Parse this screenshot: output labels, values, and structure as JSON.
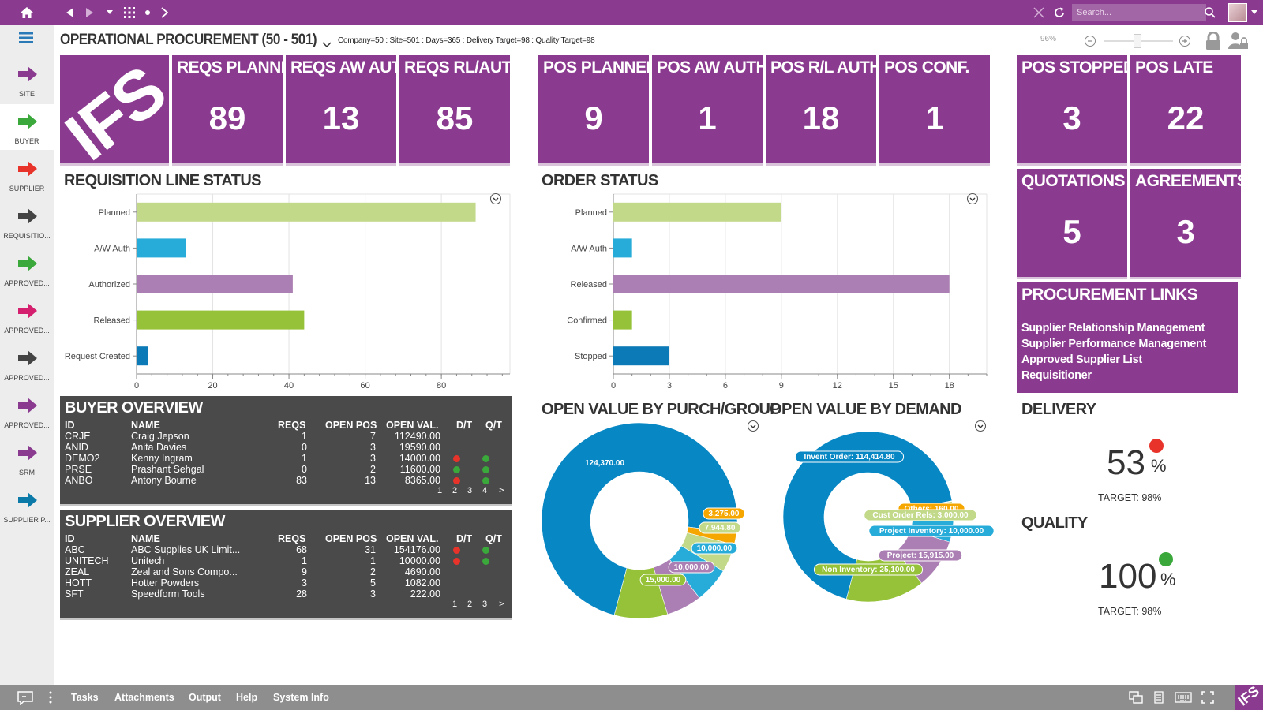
{
  "topbar": {
    "search_placeholder": "Search...",
    "icons": [
      "home-icon",
      "back-icon",
      "forward-icon",
      "dropdown-icon",
      "apps-grid-icon",
      "dot-icon",
      "navigate-icon",
      "close-icon",
      "refresh-icon",
      "search-icon"
    ]
  },
  "page": {
    "title": "OPERATIONAL PROCUREMENT (50 - 501)",
    "params": "Company=50 : Site=501 : Days=365 : Delivery Target=98 : Quality Target=98",
    "zoom": "96%"
  },
  "sidebar": {
    "items": [
      {
        "label": "SITE",
        "color": "#8a3a8f"
      },
      {
        "label": "BUYER",
        "color": "#3aa83a"
      },
      {
        "label": "SUPPLIER",
        "color": "#e8332a"
      },
      {
        "label": "REQUISITIO...",
        "color": "#444444"
      },
      {
        "label": "APPROVED...",
        "color": "#3aa83a"
      },
      {
        "label": "APPROVED...",
        "color": "#d4206e"
      },
      {
        "label": "APPROVED...",
        "color": "#444444"
      },
      {
        "label": "APPROVED...",
        "color": "#8a3a8f"
      },
      {
        "label": "SRM",
        "color": "#8a3a8f"
      },
      {
        "label": "SUPPLIER P...",
        "color": "#0b7aa8"
      }
    ]
  },
  "tiles": [
    {
      "label": "REQS PLANNED",
      "value": "89"
    },
    {
      "label": "REQS AW AUTH",
      "value": "13"
    },
    {
      "label": "REQS RL/AUTH",
      "value": "85"
    },
    {
      "label": "POS PLANNED",
      "value": "9"
    },
    {
      "label": "POS AW AUTH",
      "value": "1"
    },
    {
      "label": "POS R/L AUTH",
      "value": "18"
    },
    {
      "label": "POS CONF.",
      "value": "1"
    },
    {
      "label": "POS STOPPED",
      "value": "3"
    },
    {
      "label": "POS LATE",
      "value": "22"
    },
    {
      "label": "QUOTATIONS",
      "value": "5"
    },
    {
      "label": "AGREEMENTS",
      "value": "3"
    }
  ],
  "logo_text": "IFS",
  "sections": {
    "req_status": "REQUISITION LINE STATUS",
    "order_status": "ORDER STATUS",
    "buyer_overview": "BUYER OVERVIEW",
    "supplier_overview": "SUPPLIER OVERVIEW",
    "open_purch": "OPEN VALUE BY PURCH/GROUP",
    "open_demand": "OPEN VALUE BY DEMAND",
    "delivery": "DELIVERY",
    "quality": "QUALITY"
  },
  "chart_data": [
    {
      "type": "bar",
      "orientation": "horizontal",
      "categories": [
        "Planned",
        "A/W Auth",
        "Authorized",
        "Released",
        "Request Created"
      ],
      "values": [
        89,
        13,
        41,
        44,
        3
      ],
      "colors": [
        "#c2d98a",
        "#27acd9",
        "#ab7fb3",
        "#96c23a",
        "#0b7ab6"
      ],
      "xlim": [
        0,
        98
      ],
      "xticks": [
        "0",
        "20",
        "40",
        "60",
        "80"
      ],
      "grid": true
    },
    {
      "type": "bar",
      "orientation": "horizontal",
      "categories": [
        "Planned",
        "A/W Auth",
        "Released",
        "Confirmed",
        "Stopped"
      ],
      "values": [
        9,
        1,
        18,
        1,
        3
      ],
      "colors": [
        "#c2d98a",
        "#27acd9",
        "#ab7fb3",
        "#96c23a",
        "#0b7ab6"
      ],
      "xlim": [
        0,
        20
      ],
      "xticks": [
        "0",
        "3",
        "6",
        "9",
        "12",
        "15",
        "18"
      ],
      "grid": true
    },
    {
      "type": "pie",
      "style": "donut",
      "values": [
        124370,
        3275,
        7944.8,
        10000,
        10000,
        15000
      ],
      "labels": [
        "124,370.00",
        "3,275.00",
        "7,944.80",
        "10,000.00",
        "10,000.00",
        "15,000.00"
      ],
      "colors": [
        "#0787c3",
        "#f5a700",
        "#c2d98a",
        "#27acd9",
        "#ab7fb3",
        "#96c23a"
      ]
    },
    {
      "type": "pie",
      "style": "donut",
      "values": [
        114414.8,
        160,
        3000,
        10000,
        15915,
        25100
      ],
      "labels": [
        "Invent Order: 114,414.80",
        "Others: 160.00",
        "Cust Order Rels: 3,000.00",
        "Project Inventory: 10,000.00",
        "Project: 15,915.00",
        "Non Inventory: 25,100.00"
      ],
      "colors": [
        "#0787c3",
        "#f5a700",
        "#c2d98a",
        "#27acd9",
        "#ab7fb3",
        "#96c23a"
      ]
    }
  ],
  "buyer_overview": {
    "headers": [
      "ID",
      "NAME",
      "REQS",
      "OPEN POS",
      "OPEN VAL.",
      "D/T",
      "Q/T"
    ],
    "rows": [
      {
        "id": "CRJE",
        "name": "Craig Jepson",
        "reqs": "1",
        "open_pos": "7",
        "open_val": "112490.00",
        "dt": "",
        "qt": ""
      },
      {
        "id": "ANID",
        "name": "Anita Davies",
        "reqs": "0",
        "open_pos": "3",
        "open_val": "19590.00",
        "dt": "",
        "qt": ""
      },
      {
        "id": "DEMO2",
        "name": "Kenny Ingram",
        "reqs": "1",
        "open_pos": "3",
        "open_val": "14000.00",
        "dt": "red",
        "qt": "green"
      },
      {
        "id": "PRSE",
        "name": "Prashant Sehgal",
        "reqs": "0",
        "open_pos": "2",
        "open_val": "11600.00",
        "dt": "green",
        "qt": "green"
      },
      {
        "id": "ANBO",
        "name": "Antony Bourne",
        "reqs": "83",
        "open_pos": "13",
        "open_val": "8365.00",
        "dt": "red",
        "qt": "green"
      }
    ],
    "pages": [
      "1",
      "2",
      "3",
      "4",
      ">"
    ]
  },
  "supplier_overview": {
    "headers": [
      "ID",
      "NAME",
      "REQS",
      "OPEN POS",
      "OPEN VAL.",
      "D/T",
      "Q/T"
    ],
    "rows": [
      {
        "id": "ABC",
        "name": "ABC Supplies UK Limit...",
        "reqs": "68",
        "open_pos": "31",
        "open_val": "154176.00",
        "dt": "red",
        "qt": "green"
      },
      {
        "id": "UNITECH",
        "name": "Unitech",
        "reqs": "1",
        "open_pos": "1",
        "open_val": "10000.00",
        "dt": "red",
        "qt": "green"
      },
      {
        "id": "ZEAL",
        "name": "Zeal and Sons Compo...",
        "reqs": "9",
        "open_pos": "2",
        "open_val": "4690.00",
        "dt": "",
        "qt": ""
      },
      {
        "id": "HOTT",
        "name": "Hotter Powders",
        "reqs": "3",
        "open_pos": "5",
        "open_val": "1082.00",
        "dt": "",
        "qt": ""
      },
      {
        "id": "SFT",
        "name": "Speedform Tools",
        "reqs": "28",
        "open_pos": "3",
        "open_val": "222.00",
        "dt": "",
        "qt": ""
      }
    ],
    "pages": [
      "1",
      "2",
      "3",
      ">"
    ]
  },
  "procurement_links": {
    "title": "PROCUREMENT LINKS",
    "items": [
      "Supplier Relationship Management",
      "Supplier Performance Management",
      "Approved Supplier List",
      "Requisitioner"
    ]
  },
  "kpis": {
    "delivery": {
      "value": "53",
      "unit": "%",
      "target": "TARGET: 98%",
      "status_color": "#e8332a"
    },
    "quality": {
      "value": "100",
      "unit": "%",
      "target": "TARGET: 98%",
      "status_color": "#3aa83a"
    }
  },
  "bottombar": {
    "items": [
      "Tasks",
      "Attachments",
      "Output",
      "Help",
      "System Info"
    ]
  }
}
